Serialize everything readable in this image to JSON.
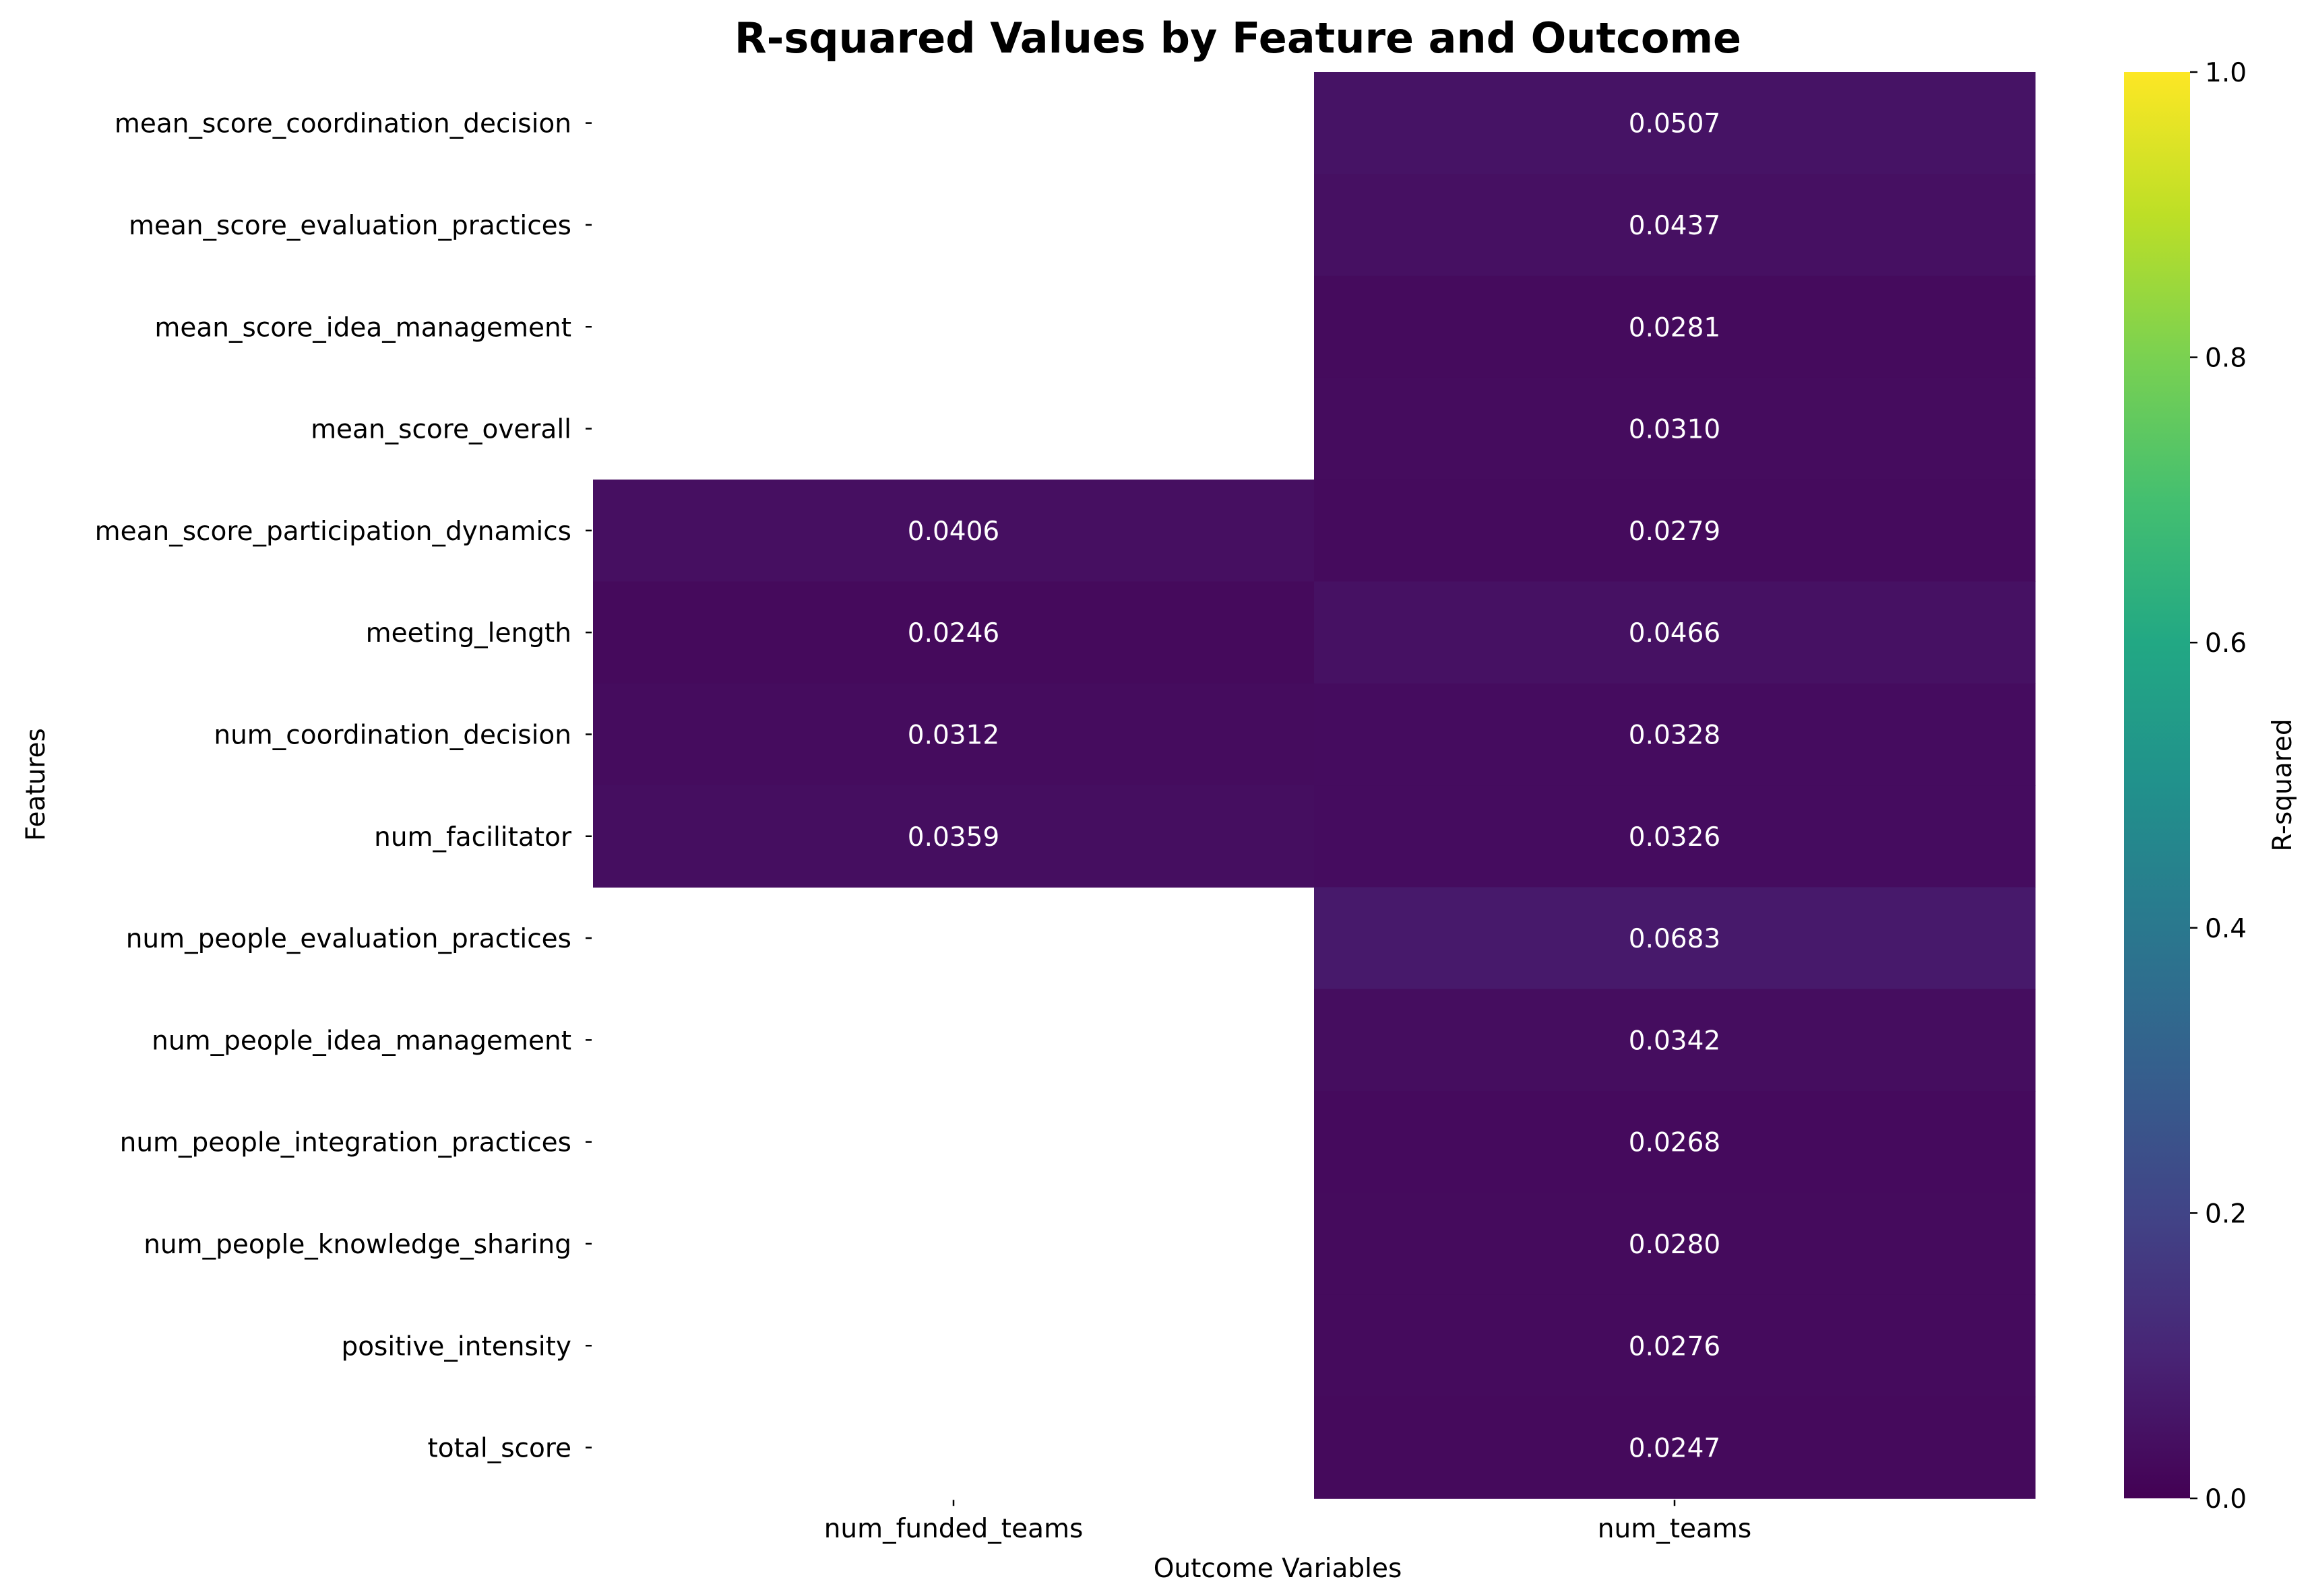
{
  "chart_data": {
    "type": "heatmap",
    "title": "R-squared Values by Feature and Outcome",
    "xlabel": "Outcome Variables",
    "ylabel": "Features",
    "columns": [
      "num_funded_teams",
      "num_teams"
    ],
    "rows": [
      "mean_score_coordination_decision",
      "mean_score_evaluation_practices",
      "mean_score_idea_management",
      "mean_score_overall",
      "mean_score_participation_dynamics",
      "meeting_length",
      "num_coordination_decision",
      "num_facilitator",
      "num_people_evaluation_practices",
      "num_people_idea_management",
      "num_people_integration_practices",
      "num_people_knowledge_sharing",
      "positive_intensity",
      "total_score"
    ],
    "values": [
      [
        null,
        0.0507
      ],
      [
        null,
        0.0437
      ],
      [
        null,
        0.0281
      ],
      [
        null,
        0.031
      ],
      [
        0.0406,
        0.0279
      ],
      [
        0.0246,
        0.0466
      ],
      [
        0.0312,
        0.0328
      ],
      [
        0.0359,
        0.0326
      ],
      [
        null,
        0.0683
      ],
      [
        null,
        0.0342
      ],
      [
        null,
        0.0268
      ],
      [
        null,
        0.028
      ],
      [
        null,
        0.0276
      ],
      [
        null,
        0.0247
      ]
    ],
    "value_labels": [
      [
        "",
        "0.0507"
      ],
      [
        "",
        "0.0437"
      ],
      [
        "",
        "0.0281"
      ],
      [
        "",
        "0.0310"
      ],
      [
        "0.0406",
        "0.0279"
      ],
      [
        "0.0246",
        "0.0466"
      ],
      [
        "0.0312",
        "0.0328"
      ],
      [
        "0.0359",
        "0.0326"
      ],
      [
        "",
        "0.0683"
      ],
      [
        "",
        "0.0342"
      ],
      [
        "",
        "0.0268"
      ],
      [
        "",
        "0.0280"
      ],
      [
        "",
        "0.0276"
      ],
      [
        "",
        "0.0247"
      ]
    ],
    "colorscale": "viridis",
    "vmin": 0,
    "vmax": 1,
    "colorbar": {
      "label": "R-squared",
      "ticks": [
        0.0,
        0.2,
        0.4,
        0.6,
        0.8,
        1.0
      ],
      "tick_labels": [
        "0.0",
        "0.2",
        "0.4",
        "0.6",
        "0.8",
        "1.0"
      ]
    },
    "missing_color": "#ffffff"
  }
}
